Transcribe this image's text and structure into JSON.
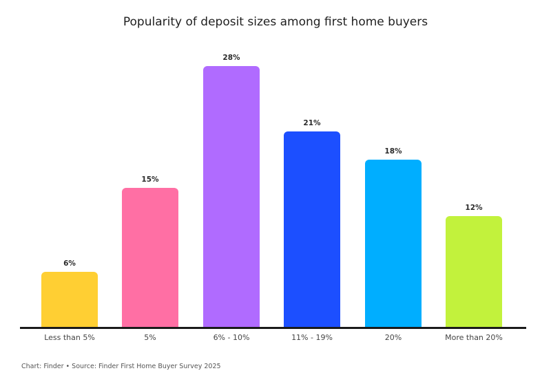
{
  "chart_data": {
    "type": "bar",
    "title": "Popularity of deposit sizes among first home buyers",
    "categories": [
      "Less than 5%",
      "5%",
      "6% - 10%",
      "11% - 19%",
      "20%",
      "More than 20%"
    ],
    "values": [
      6,
      15,
      28,
      21,
      18,
      12
    ],
    "value_labels": [
      "6%",
      "15%",
      "28%",
      "21%",
      "18%",
      "12%"
    ],
    "colors": [
      "#ffcf33",
      "#ff6fa4",
      "#b06bff",
      "#1c4fff",
      "#00aeff",
      "#c2f23c"
    ],
    "xlabel": "",
    "ylabel": "",
    "ylim": [
      0,
      28
    ],
    "grid": false,
    "legend": "none",
    "source": "Chart: Finder • Source: Finder First Home Buyer Survey 2025"
  }
}
